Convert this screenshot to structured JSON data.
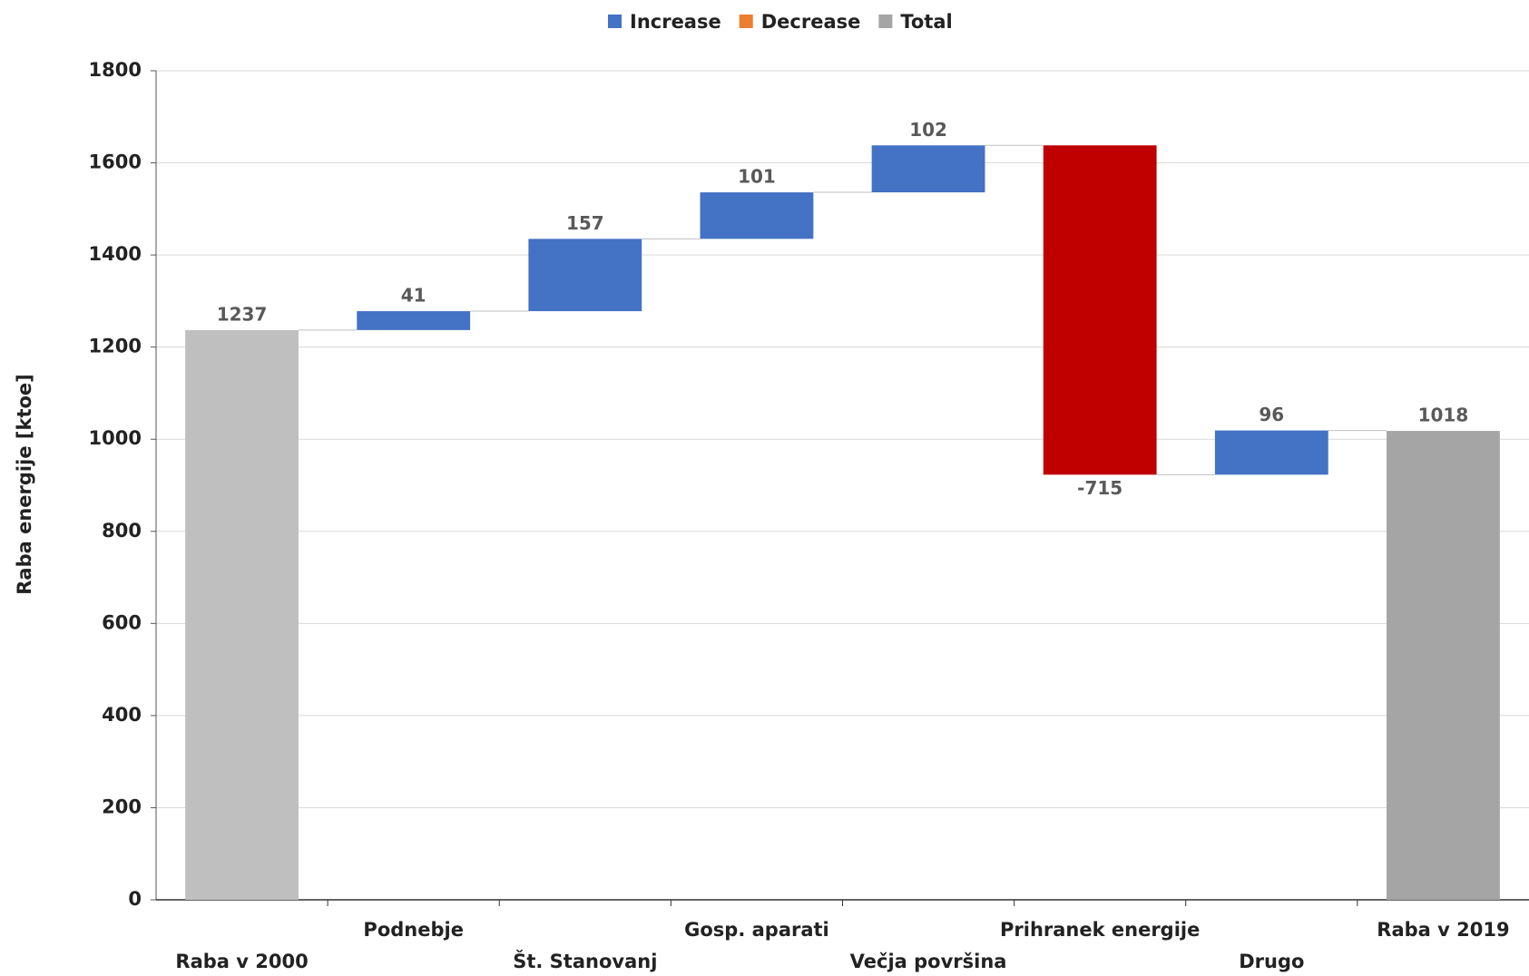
{
  "chart_data": {
    "type": "waterfall",
    "y_label": "Raba energije [ktoe]",
    "categories": [
      "Raba v 2000",
      "Podnebje",
      "Št. Stanovanj",
      "Gosp. aparati",
      "Večja površina",
      "Prihranek energije",
      "Drugo",
      "Raba v 2019"
    ],
    "measure": [
      "total",
      "relative",
      "relative",
      "relative",
      "relative",
      "relative",
      "relative",
      "total"
    ],
    "values": [
      1237,
      41,
      157,
      101,
      102,
      -715,
      96,
      1018
    ],
    "colors": [
      "#bfbfbf",
      "#4472c4",
      "#4472c4",
      "#4472c4",
      "#4472c4",
      "#c00000",
      "#4472c4",
      "#a5a5a5"
    ],
    "legend": [
      {
        "name": "Increase",
        "color": "#4472c4"
      },
      {
        "name": "Decrease",
        "color": "#ed7d31"
      },
      {
        "name": "Total",
        "color": "#a5a5a5"
      }
    ],
    "ylim": [
      0,
      1800
    ],
    "yticks": [
      0,
      200,
      400,
      600,
      800,
      1000,
      1200,
      1400,
      1600,
      1800
    ],
    "grid": true
  }
}
